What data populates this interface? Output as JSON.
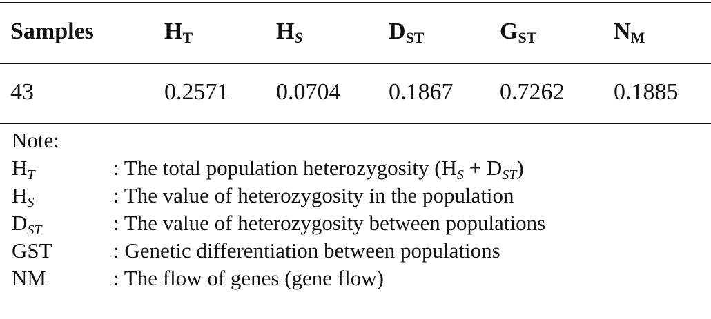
{
  "table": {
    "headers": [
      {
        "main": "Samples",
        "sub": ""
      },
      {
        "main": "H",
        "sub": "T"
      },
      {
        "main": "H",
        "sub": "S"
      },
      {
        "main": "D",
        "sub": "ST"
      },
      {
        "main": "G",
        "sub": "ST"
      },
      {
        "main": "N",
        "sub": "M"
      }
    ],
    "rows": [
      [
        "43",
        "0.2571",
        "0.0704",
        "0.1867",
        "0.7262",
        "0.1885"
      ]
    ]
  },
  "notes": {
    "title": "Note:",
    "items": [
      {
        "term_main": "H",
        "term_sub": "T",
        "desc_a": ": The total population heterozygosity (H",
        "desc_sub1": "S",
        "desc_b": " + D",
        "desc_sub2": "ST",
        "desc_c": ")"
      },
      {
        "term_main": "H",
        "term_sub": "S",
        "desc": ": The value of heterozygosity in the population"
      },
      {
        "term_main": "D",
        "term_sub": "ST",
        "desc": ": The value of heterozygosity between populations"
      },
      {
        "term_main": "GST",
        "term_sub": "",
        "desc": ": Genetic differentiation between populations"
      },
      {
        "term_main": "NM",
        "term_sub": "",
        "desc": ": The flow of genes (gene flow)"
      }
    ]
  }
}
